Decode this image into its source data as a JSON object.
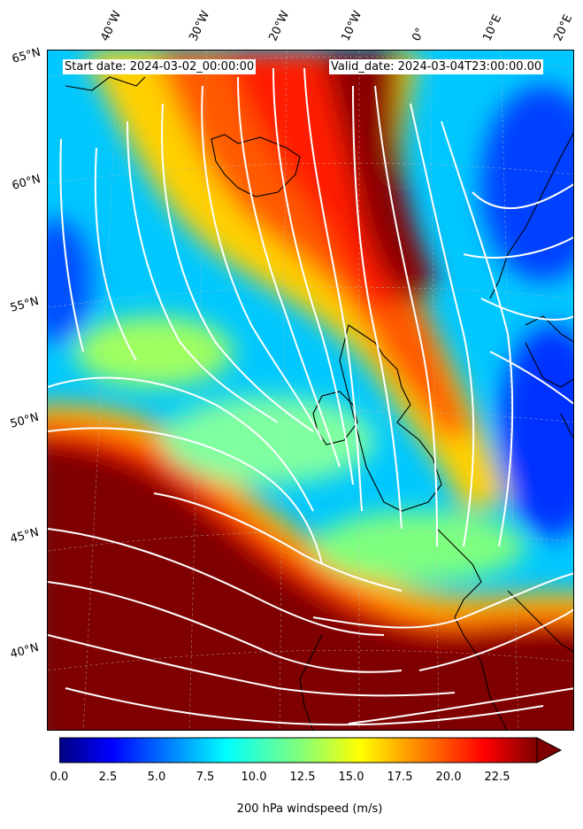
{
  "map": {
    "start_label": "Start date: 2024-03-02_00:00:00",
    "valid_label": "Valid_date: 2024-03-04T23:00:00.00",
    "lon_labels": [
      "40°W",
      "30°W",
      "20°W",
      "10°W",
      "0°",
      "10°E",
      "20°E"
    ],
    "lat_labels": [
      "65°N",
      "60°N",
      "55°N",
      "50°N",
      "45°N",
      "40°N"
    ],
    "variable": "200 hPa windspeed",
    "streamline_color": "#ffffff",
    "coastline_color": "#000000"
  },
  "colorbar": {
    "label": "200 hPa windspeed (m/s)",
    "ticks": [
      "0.0",
      "2.5",
      "5.0",
      "7.5",
      "10.0",
      "12.5",
      "15.0",
      "17.5",
      "20.0",
      "22.5"
    ],
    "min": 0,
    "max": 25,
    "extend": "max",
    "colormap": "jet",
    "colors": [
      "#00007f",
      "#0000ff",
      "#007fff",
      "#00ffff",
      "#7fff7f",
      "#ffff00",
      "#ff7f00",
      "#ff0000",
      "#7f0000"
    ]
  }
}
